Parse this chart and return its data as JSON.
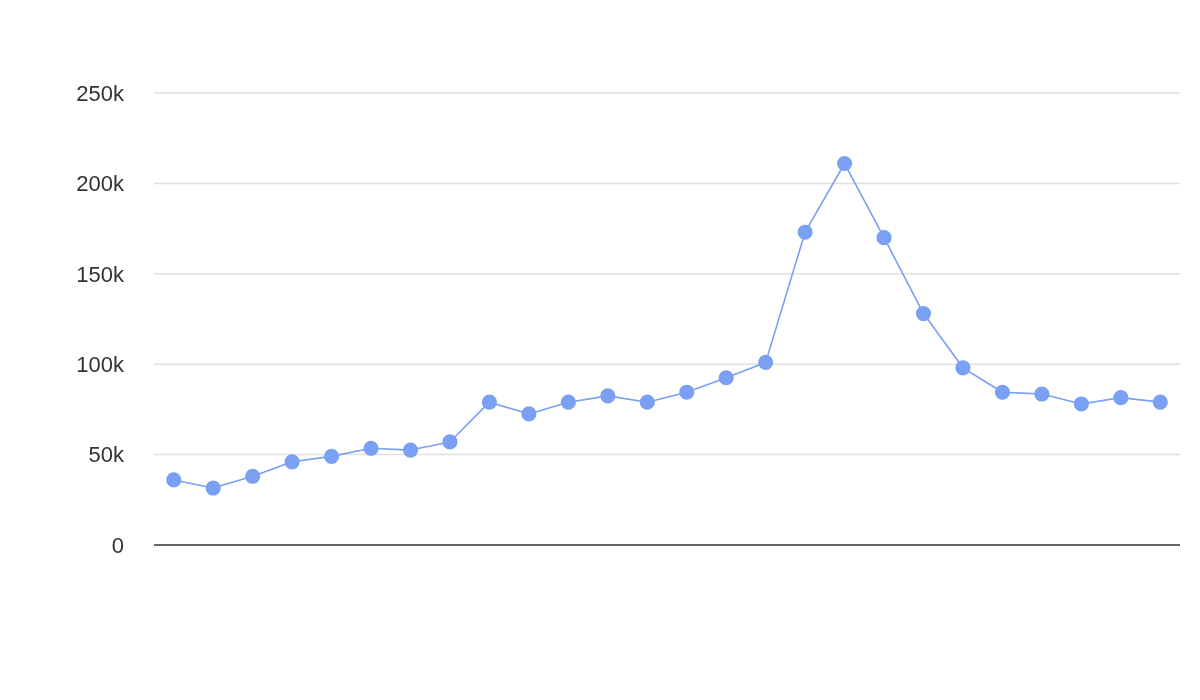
{
  "chart_data": {
    "type": "line",
    "categories": [
      null,
      null,
      null,
      null,
      null,
      null,
      null,
      null,
      null,
      null,
      null,
      null,
      null,
      null,
      null,
      null,
      null,
      null,
      null,
      null,
      null,
      null,
      null,
      null,
      null,
      null
    ],
    "series": [
      {
        "color": "#79a0f2",
        "values": [
          36000,
          31500,
          38000,
          46000,
          49000,
          53500,
          52500,
          57000,
          79000,
          72500,
          79000,
          82500,
          79000,
          84500,
          92500,
          101000,
          173000,
          211000,
          170000,
          128000,
          98000,
          84500,
          83500,
          78000,
          81500,
          79000
        ]
      }
    ],
    "ylim": [
      0,
      250000
    ],
    "yticks": [
      {
        "value": 0,
        "label": "0"
      },
      {
        "value": 50000,
        "label": "50k"
      },
      {
        "value": 100000,
        "label": "100k"
      },
      {
        "value": 150000,
        "label": "150k"
      },
      {
        "value": 200000,
        "label": "200k"
      },
      {
        "value": 250000,
        "label": "250k"
      }
    ],
    "grid": "y",
    "marker": "circle"
  }
}
